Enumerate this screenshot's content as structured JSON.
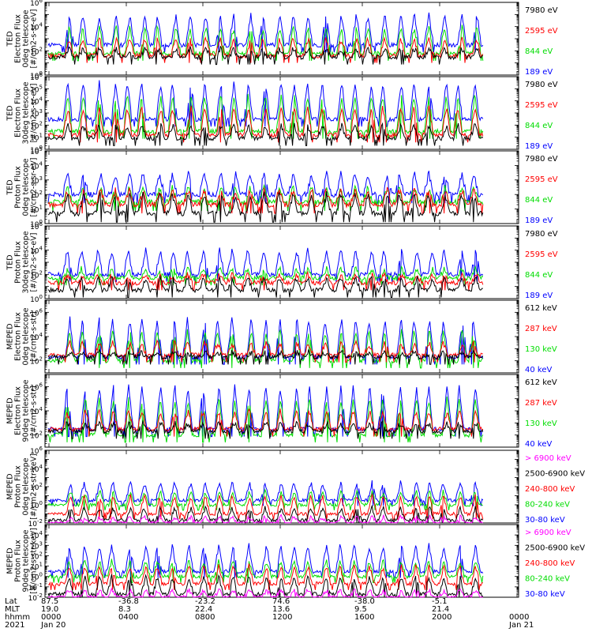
{
  "chart_data": [
    {
      "type": "line",
      "panel": 1,
      "ylabel": [
        "TED",
        "Electron Flux",
        "0deg telescope",
        "[#/cm2-s-sr-eV]"
      ],
      "ylim": [
        1,
        1000000
      ],
      "log_scale": true,
      "y_ticks": [
        {
          "v": 1,
          "e": "0"
        },
        {
          "v": 100,
          "e": "2"
        },
        {
          "v": 10000,
          "e": "4"
        },
        {
          "v": 1000000,
          "e": "6"
        }
      ],
      "series": [
        {
          "name": "7980 eV",
          "color": "#000000",
          "floor": 30,
          "peak": 150
        },
        {
          "name": "2595 eV",
          "color": "#ff0000",
          "floor": 40,
          "peak": 1000
        },
        {
          "name": "844 eV",
          "color": "#00dd00",
          "floor": 60,
          "peak": 10000
        },
        {
          "name": "189 eV",
          "color": "#0000ff",
          "floor": 300,
          "peak": 100000
        }
      ]
    },
    {
      "type": "line",
      "panel": 2,
      "ylabel": [
        "TED",
        "Electron Flux",
        "30deg telescope",
        "[#/cm2-s-sr-eV]"
      ],
      "ylim": [
        1,
        1000000
      ],
      "log_scale": true,
      "y_ticks": [
        {
          "v": 1,
          "e": "0"
        },
        {
          "v": 10,
          "e": "1"
        },
        {
          "v": 100,
          "e": "2"
        },
        {
          "v": 1000,
          "e": "3"
        },
        {
          "v": 10000,
          "e": "4"
        },
        {
          "v": 100000,
          "e": "5"
        },
        {
          "v": 1000000,
          "e": "6"
        }
      ],
      "series": [
        {
          "name": "7980 eV",
          "color": "#000000",
          "floor": 8,
          "peak": 100
        },
        {
          "name": "2595 eV",
          "color": "#ff0000",
          "floor": 15,
          "peak": 3000
        },
        {
          "name": "844 eV",
          "color": "#00dd00",
          "floor": 30,
          "peak": 30000
        },
        {
          "name": "189 eV",
          "color": "#0000ff",
          "floor": 300,
          "peak": 300000
        }
      ]
    },
    {
      "type": "line",
      "panel": 3,
      "ylabel": [
        "TED",
        "Proton Flux",
        "0deg telescope",
        "[#/cm2-s-sr-eV]"
      ],
      "ylim": [
        1,
        100000
      ],
      "log_scale": true,
      "y_ticks": [
        {
          "v": 1,
          "e": "0"
        },
        {
          "v": 10,
          "e": "1"
        },
        {
          "v": 100,
          "e": "2"
        },
        {
          "v": 1000,
          "e": "3"
        },
        {
          "v": 10000,
          "e": "4"
        },
        {
          "v": 100000,
          "e": "5"
        }
      ],
      "series": [
        {
          "name": "7980 eV",
          "color": "#000000",
          "floor": 5,
          "peak": 100
        },
        {
          "name": "2595 eV",
          "color": "#ff0000",
          "floor": 20,
          "peak": 200
        },
        {
          "name": "844 eV",
          "color": "#00dd00",
          "floor": 30,
          "peak": 300
        },
        {
          "name": "189 eV",
          "color": "#0000ff",
          "floor": 100,
          "peak": 3000
        }
      ]
    },
    {
      "type": "line",
      "panel": 4,
      "ylabel": [
        "TED",
        "Proton Flux",
        "30deg telescope",
        "[#/cm2-s-sr-eV]"
      ],
      "ylim": [
        1,
        1000000
      ],
      "log_scale": true,
      "y_ticks": [
        {
          "v": 1,
          "e": "0"
        },
        {
          "v": 100,
          "e": "2"
        },
        {
          "v": 10000,
          "e": "4"
        },
        {
          "v": 1000000,
          "e": "6"
        }
      ],
      "series": [
        {
          "name": "7980 eV",
          "color": "#000000",
          "floor": 5,
          "peak": 50
        },
        {
          "name": "2595 eV",
          "color": "#ff0000",
          "floor": 20,
          "peak": 100
        },
        {
          "name": "844 eV",
          "color": "#00dd00",
          "floor": 50,
          "peak": 300
        },
        {
          "name": "189 eV",
          "color": "#0000ff",
          "floor": 100,
          "peak": 10000
        }
      ]
    },
    {
      "type": "line",
      "panel": 5,
      "ylabel": [
        "MEPED",
        "Electron Flux",
        "0deg telescope",
        "[#/cm2-s-str]"
      ],
      "ylim": [
        10,
        10000000
      ],
      "log_scale": true,
      "y_ticks": [
        {
          "v": 100,
          "e": "2"
        },
        {
          "v": 10000,
          "e": "4"
        },
        {
          "v": 1000000,
          "e": "6"
        }
      ],
      "series": [
        {
          "name": "612 keV",
          "color": "#000000",
          "floor": 200,
          "peak": 500
        },
        {
          "name": "287 keV",
          "color": "#ff0000",
          "floor": 300,
          "peak": 3000
        },
        {
          "name": "130 keV",
          "color": "#00dd00",
          "floor": 100,
          "peak": 30000
        },
        {
          "name": "40 keV",
          "color": "#0000ff",
          "floor": 200,
          "peak": 300000
        }
      ]
    },
    {
      "type": "line",
      "panel": 6,
      "ylabel": [
        "MEPED",
        "Electron Flux",
        "90deg telescope",
        "[#/cm2-s-str]"
      ],
      "ylim": [
        10,
        10000000
      ],
      "log_scale": true,
      "y_ticks": [
        {
          "v": 100,
          "e": "2"
        },
        {
          "v": 10000,
          "e": "4"
        },
        {
          "v": 1000000,
          "e": "6"
        }
      ],
      "series": [
        {
          "name": "612 keV",
          "color": "#000000",
          "floor": 200,
          "peak": 1000
        },
        {
          "name": "287 keV",
          "color": "#ff0000",
          "floor": 300,
          "peak": 10000
        },
        {
          "name": "130 keV",
          "color": "#00dd00",
          "floor": 100,
          "peak": 100000
        },
        {
          "name": "40 keV",
          "color": "#0000ff",
          "floor": 300,
          "peak": 1000000
        }
      ]
    },
    {
      "type": "line",
      "panel": 7,
      "ylabel": [
        "MEPED",
        "Proton Flux",
        "0deg telescope",
        "[#/cm2-s-str-keV]"
      ],
      "ylim": [
        0.01,
        1000000
      ],
      "log_scale": true,
      "y_ticks": [
        {
          "v": 0.01,
          "e": "-2"
        },
        {
          "v": 1,
          "e": "0"
        },
        {
          "v": 100,
          "e": "2"
        },
        {
          "v": 10000,
          "e": "4"
        },
        {
          "v": 1000000,
          "e": "6"
        }
      ],
      "series": [
        {
          "name": "> 6900 keV",
          "color": "#ff00ff",
          "floor": 0.01,
          "peak": 0.05
        },
        {
          "name": "2500-6900 keV",
          "color": "#000000",
          "floor": 0.02,
          "peak": 0.5
        },
        {
          "name": "240-800 keV",
          "color": "#ff0000",
          "floor": 0.1,
          "peak": 10
        },
        {
          "name": "80-240 keV",
          "color": "#00dd00",
          "floor": 1,
          "peak": 30
        },
        {
          "name": "30-80 keV",
          "color": "#0000ff",
          "floor": 3,
          "peak": 300
        }
      ]
    },
    {
      "type": "line",
      "panel": 8,
      "ylabel": [
        "MEPED",
        "Proton Flux",
        "90deg telescope",
        "[#/cm2-s-str-keV]"
      ],
      "ylim": [
        0.01,
        100000
      ],
      "log_scale": true,
      "y_ticks": [
        {
          "v": 0.01,
          "e": "-2"
        },
        {
          "v": 0.1,
          "e": "-1"
        },
        {
          "v": 1,
          "e": "0"
        },
        {
          "v": 10,
          "e": "1"
        },
        {
          "v": 100,
          "e": "2"
        },
        {
          "v": 1000,
          "e": "3"
        },
        {
          "v": 10000,
          "e": "4"
        }
      ],
      "series": [
        {
          "name": "> 6900 keV",
          "color": "#ff00ff",
          "floor": 0.01,
          "peak": 0.05
        },
        {
          "name": "2500-6900 keV",
          "color": "#000000",
          "floor": 0.02,
          "peak": 1
        },
        {
          "name": "240-800 keV",
          "color": "#ff0000",
          "floor": 0.2,
          "peak": 10
        },
        {
          "name": "80-240 keV",
          "color": "#00dd00",
          "floor": 1,
          "peak": 30
        },
        {
          "name": "30-80 keV",
          "color": "#0000ff",
          "floor": 3,
          "peak": 1000
        }
      ]
    }
  ],
  "x_axis": {
    "row_labels": [
      "Lat",
      "MLT",
      "hhmm",
      "2021"
    ],
    "ticks": [
      {
        "lat": "87.5",
        "mlt": "19.0",
        "hhmm": "0000",
        "date": "Jan 20"
      },
      {
        "lat": "-36.8",
        "mlt": "8.3",
        "hhmm": "0400",
        "date": ""
      },
      {
        "lat": "-23.2",
        "mlt": "22.4",
        "hhmm": "0800",
        "date": ""
      },
      {
        "lat": "74.6",
        "mlt": "13.6",
        "hhmm": "1200",
        "date": ""
      },
      {
        "lat": "-38.0",
        "mlt": "9.5",
        "hhmm": "1600",
        "date": ""
      },
      {
        "lat": "-5.1",
        "mlt": "21.4",
        "hhmm": "2000",
        "date": ""
      },
      {
        "lat": "",
        "mlt": "",
        "hhmm": "0000",
        "date": "Jan 21"
      }
    ]
  }
}
